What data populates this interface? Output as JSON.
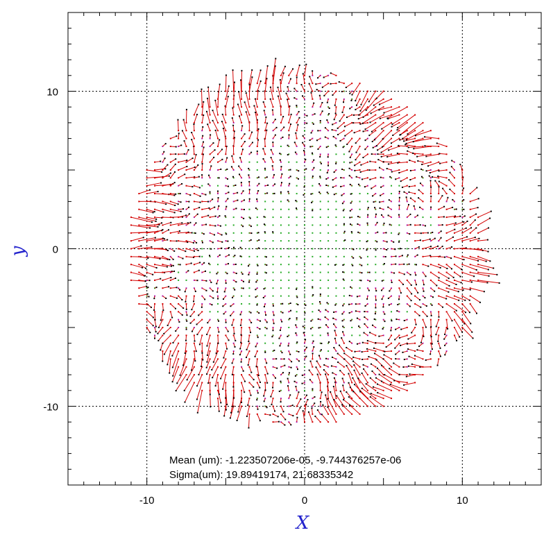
{
  "chart_data": {
    "type": "quiver",
    "xlabel": "X",
    "ylabel": "y",
    "xlim": [
      -15,
      15
    ],
    "ylim": [
      -15,
      15
    ],
    "xticks": [
      -10,
      0,
      10
    ],
    "yticks": [
      -10,
      0,
      10
    ],
    "xtick_labels": [
      "-10",
      "0",
      "10"
    ],
    "ytick_labels": [
      "-10",
      "0",
      "10"
    ],
    "grid": "dotted lines at -10, 0, 10",
    "grid_spacing": 0.5,
    "field_radius": 11.2,
    "arrow_scale_note": "arrows are residual vectors shown on a regular grid; mostly radial near the edge, small near center",
    "stats": {
      "mean_line": "Mean (um): -1.223507206e-05, -9.744376257e-06",
      "sigma_line": "Sigma(um): 19.89419174, 21.68335342"
    },
    "colors": {
      "axis_label": "#2222cc",
      "vector": "#d40000",
      "marker_small": "#22aa22",
      "marker_medium": "#aa22cc",
      "marker_large": "#d40000",
      "grid": "#000000",
      "frame": "#000000"
    }
  }
}
